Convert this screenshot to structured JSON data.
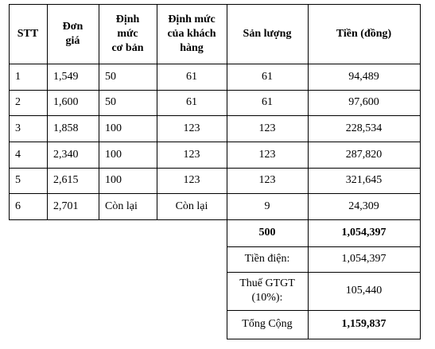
{
  "headers": {
    "stt": "STT",
    "don_gia": "Đơn\ngiá",
    "dinh_muc_co_ban": "Định\nmức\ncơ bản",
    "dinh_muc_khach_hang": "Định mức\ncủa khách\nhàng",
    "san_luong": "Sản lượng",
    "tien": "Tiền (đồng)"
  },
  "rows": [
    {
      "stt": "1",
      "don_gia": "1,549",
      "co_ban": "50",
      "khach_hang": "61",
      "san_luong": "61",
      "tien": "94,489"
    },
    {
      "stt": "2",
      "don_gia": "1,600",
      "co_ban": "50",
      "khach_hang": "61",
      "san_luong": "61",
      "tien": "97,600"
    },
    {
      "stt": "3",
      "don_gia": "1,858",
      "co_ban": "100",
      "khach_hang": "123",
      "san_luong": "123",
      "tien": "228,534"
    },
    {
      "stt": "4",
      "don_gia": "2,340",
      "co_ban": "100",
      "khach_hang": "123",
      "san_luong": "123",
      "tien": "287,820"
    },
    {
      "stt": "5",
      "don_gia": "2,615",
      "co_ban": "100",
      "khach_hang": "123",
      "san_luong": "123",
      "tien": "321,645"
    },
    {
      "stt": "6",
      "don_gia": "2,701",
      "co_ban": "Còn lại",
      "khach_hang": "Còn lại",
      "san_luong": "9",
      "tien": "24,309"
    }
  ],
  "summary": {
    "total_qty": "500",
    "total_amount": "1,054,397",
    "tien_dien_label": "Tiền điện:",
    "tien_dien_value": "1,054,397",
    "vat_label": "Thuế GTGT\n(10%):",
    "vat_value": "105,440",
    "tong_cong_label": "Tổng Cộng",
    "tong_cong_value": "1,159,837"
  }
}
